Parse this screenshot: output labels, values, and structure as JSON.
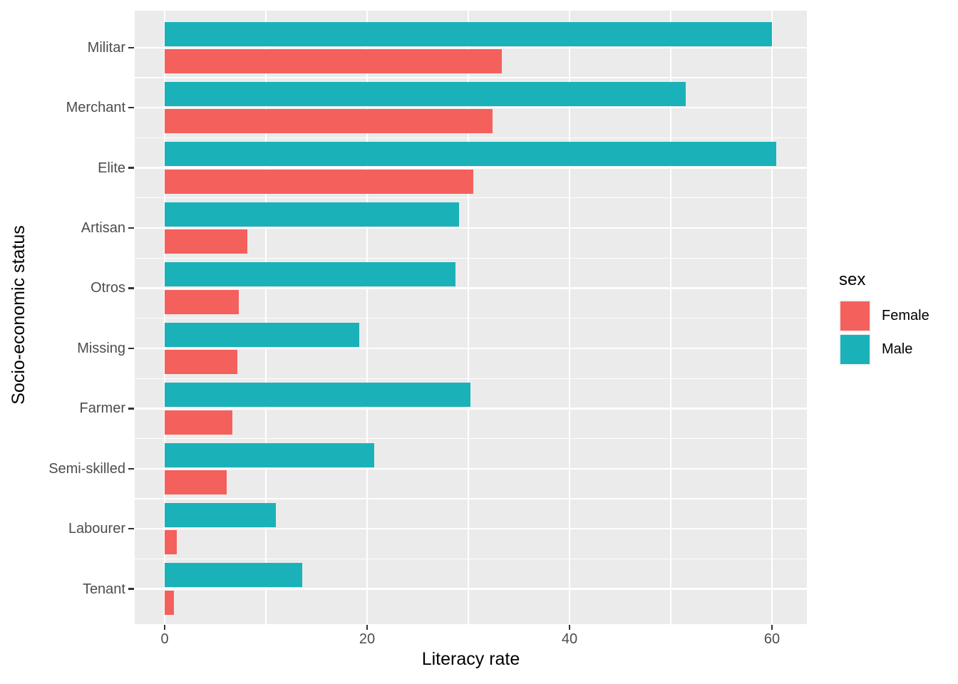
{
  "style": {
    "female_color": "#F4605C",
    "male_color": "#1AB2B8",
    "panel_bg": "#EBEBEB",
    "gridline_color": "#FFFFFF",
    "axis_text_color": "#4D4D4D",
    "title_text_color": "#000000",
    "tick_mark_color": "#333333",
    "legend_key_bg": "#F2F2F2"
  },
  "chart_data": {
    "type": "bar",
    "orientation": "horizontal",
    "title": "",
    "xlabel": "Literacy rate",
    "ylabel": "Socio-economic status",
    "xlim": [
      0,
      63.4
    ],
    "x_major_ticks": [
      0,
      20,
      40,
      60
    ],
    "x_tick_labels": [
      "0",
      "20",
      "40",
      "60"
    ],
    "x_minor_gridlines": [
      10,
      30,
      50
    ],
    "grid": "white major and minor gridlines on grey panel (ggplot style)",
    "legend": {
      "title": "sex",
      "position": "right"
    },
    "categories": [
      "Militar",
      "Merchant",
      "Elite",
      "Artisan",
      "Otros",
      "Missing",
      "Farmer",
      "Semi-skilled",
      "Labourer",
      "Tenant"
    ],
    "series": [
      {
        "name": "Female",
        "color": "#F4605C",
        "values": [
          33.3,
          32.4,
          30.5,
          8.2,
          7.3,
          7.2,
          6.7,
          6.1,
          1.2,
          0.9
        ]
      },
      {
        "name": "Male",
        "color": "#1AB2B8",
        "values": [
          60.0,
          51.5,
          60.4,
          29.1,
          28.7,
          19.2,
          30.2,
          20.7,
          11.0,
          13.6
        ]
      }
    ],
    "bar_group_order_top_to_bottom": [
      "Male",
      "Female"
    ]
  }
}
